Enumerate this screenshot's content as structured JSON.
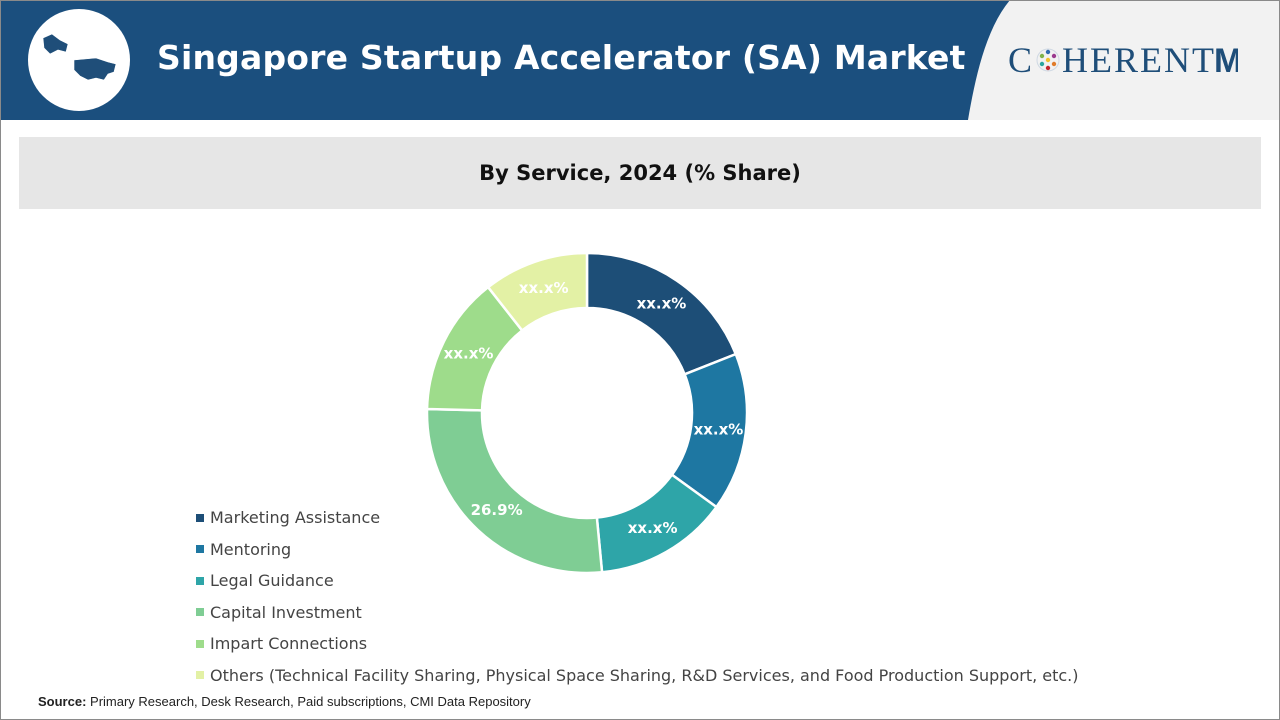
{
  "header": {
    "title": "Singapore Startup Accelerator (SA) Market",
    "logo_text": "C HERENT",
    "logo_mi": "Mi",
    "map_icon": "usa-map-icon",
    "colors": {
      "banner": "#1b4f7e",
      "banner_light": "#f2f2f2"
    }
  },
  "subheader": {
    "title": "By Service, 2024 (% Share)"
  },
  "chart_data": {
    "type": "donut",
    "title": "By Service, 2024 (% Share)",
    "series": [
      {
        "name": "Marketing Assistance",
        "value": 19.0,
        "label": "xx.x%",
        "color": "#1d4e77"
      },
      {
        "name": "Mentoring",
        "value": 16.0,
        "label": "xx.x%",
        "color": "#1e77a2"
      },
      {
        "name": "Legal Guidance",
        "value": 13.5,
        "label": "xx.x%",
        "color": "#2ea5a8"
      },
      {
        "name": "Capital Investment",
        "value": 26.9,
        "label": "26.9%",
        "color": "#7fcd94"
      },
      {
        "name": "Impart Connections",
        "value": 14.0,
        "label": "xx.x%",
        "color": "#9edc8b"
      },
      {
        "name": "Others (Technical Facility Sharing, Physical Space Sharing, R&D Services, and Food Production Support, etc.)",
        "value": 10.6,
        "label": "xx.x%",
        "color": "#e3f1a5"
      }
    ],
    "legend_position": "bottom-left"
  },
  "source": {
    "label": "Source:",
    "text": " Primary Research, Desk Research, Paid subscriptions, CMI Data Repository"
  }
}
